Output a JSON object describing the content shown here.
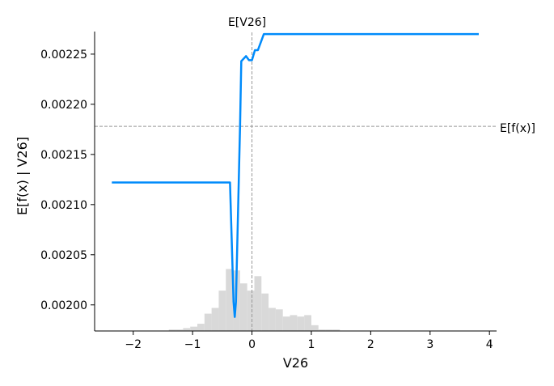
{
  "chart_data": {
    "type": "line",
    "xlabel": "V26",
    "ylabel": "E[f(x) | V26]",
    "xlim": [
      -2.65,
      4.12
    ],
    "ylim": [
      0.001974,
      0.002283
    ],
    "x_ticks": [
      -2,
      -1,
      0,
      1,
      2,
      3,
      4
    ],
    "x_tick_labels": [
      "−2",
      "−1",
      "0",
      "1",
      "2",
      "3",
      "4"
    ],
    "y_ticks": [
      0.002,
      0.00205,
      0.0021,
      0.00215,
      0.0022,
      0.00225
    ],
    "y_tick_labels": [
      "0.00200",
      "0.00205",
      "0.00210",
      "0.00215",
      "0.00220",
      "0.00225"
    ],
    "grid": false,
    "colors": {
      "line": "#008bfb",
      "histogram": "#d9d9d9",
      "reference": "#999999"
    },
    "series": [
      {
        "x": [
          -2.36,
          -1.5,
          -0.5,
          -0.37,
          -0.31,
          -0.29,
          -0.27,
          -0.2,
          -0.18,
          -0.1,
          -0.05,
          0.0,
          0.05,
          0.1,
          0.15,
          0.2,
          0.3,
          1.0,
          2.0,
          3.0,
          3.82
        ],
        "y": [
          0.002122,
          0.002122,
          0.002122,
          0.002122,
          0.002003,
          0.001988,
          0.002003,
          0.00218,
          0.002243,
          0.002248,
          0.002244,
          0.002244,
          0.002254,
          0.002254,
          0.002262,
          0.00227,
          0.00227,
          0.00227,
          0.00227,
          0.00227,
          0.00227
        ]
      }
    ],
    "histogram": {
      "edges": [
        -2.36,
        -2.24,
        -2.12,
        -2.0,
        -1.88,
        -1.76,
        -1.64,
        -1.52,
        -1.4,
        -1.28,
        -1.16,
        -1.04,
        -0.92,
        -0.8,
        -0.68,
        -0.56,
        -0.44,
        -0.32,
        -0.2,
        -0.08,
        0.04,
        0.16,
        0.28,
        0.4,
        0.52,
        0.64,
        0.76,
        0.88,
        1.0,
        1.12,
        1.24,
        1.36,
        1.48,
        1.6,
        1.72
      ],
      "counts": [
        0,
        0,
        0,
        0,
        0,
        0,
        0,
        0,
        1,
        1,
        2,
        3,
        5,
        12,
        16,
        28,
        43,
        42,
        33,
        28,
        38,
        26,
        16,
        15,
        10,
        11,
        10,
        11,
        4,
        1,
        1,
        1,
        0,
        0
      ],
      "max_height_fraction": 0.2
    },
    "reference_lines": {
      "vertical": {
        "label": "E[V26]",
        "x": 0.0
      },
      "horizontal": {
        "label": "E[f(x)]",
        "y": 0.002178
      }
    }
  }
}
